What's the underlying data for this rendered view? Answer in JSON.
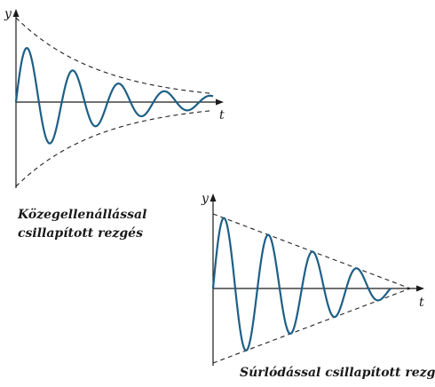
{
  "panels": [
    {
      "id": "viscous",
      "damping": "exponential",
      "y_label": "y",
      "t_label": "t",
      "caption_lines": [
        "Közegellenállással",
        "csillapított rezgés"
      ],
      "cycles_shown": 4.3,
      "amplitude_at_end_fraction": 0.1
    },
    {
      "id": "friction",
      "damping": "linear",
      "y_label": "y",
      "t_label": "t",
      "caption_lines": [
        "Súrlódással csillapított rezgés"
      ],
      "cycles_shown": 4,
      "amplitude_at_end_fraction": 0
    }
  ]
}
